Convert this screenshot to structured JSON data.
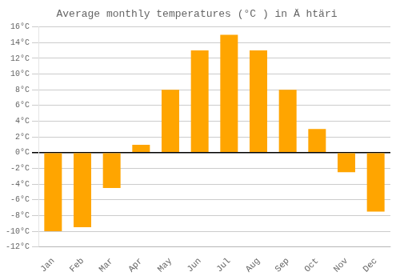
{
  "chart_data": {
    "type": "bar",
    "title": "Average monthly temperatures (°C ) in Ä htäri",
    "categories": [
      "Jan",
      "Feb",
      "Mar",
      "Apr",
      "May",
      "Jun",
      "Jul",
      "Aug",
      "Sep",
      "Oct",
      "Nov",
      "Dec"
    ],
    "values": [
      -10,
      -9.5,
      -4.5,
      1,
      8,
      13,
      15,
      13,
      8,
      3,
      -2.5,
      -7.5
    ],
    "color": "#FFA500",
    "ylim": [
      -12,
      16
    ],
    "yticks": [
      {
        "value": -12,
        "label": "-12°C"
      },
      {
        "value": -10,
        "label": "-10°C"
      },
      {
        "value": -8,
        "label": "-8°C"
      },
      {
        "value": -6,
        "label": "-6°C"
      },
      {
        "value": -4,
        "label": "-4°C"
      },
      {
        "value": -2,
        "label": "-2°C"
      },
      {
        "value": 0,
        "label": "0°C"
      },
      {
        "value": 2,
        "label": "2°C"
      },
      {
        "value": 4,
        "label": "4°C"
      },
      {
        "value": 6,
        "label": "6°C"
      },
      {
        "value": 8,
        "label": "8°C"
      },
      {
        "value": 10,
        "label": "10°C"
      },
      {
        "value": 12,
        "label": "12°C"
      },
      {
        "value": 14,
        "label": "14°C"
      },
      {
        "value": 16,
        "label": "16°C"
      }
    ],
    "grid": true
  }
}
